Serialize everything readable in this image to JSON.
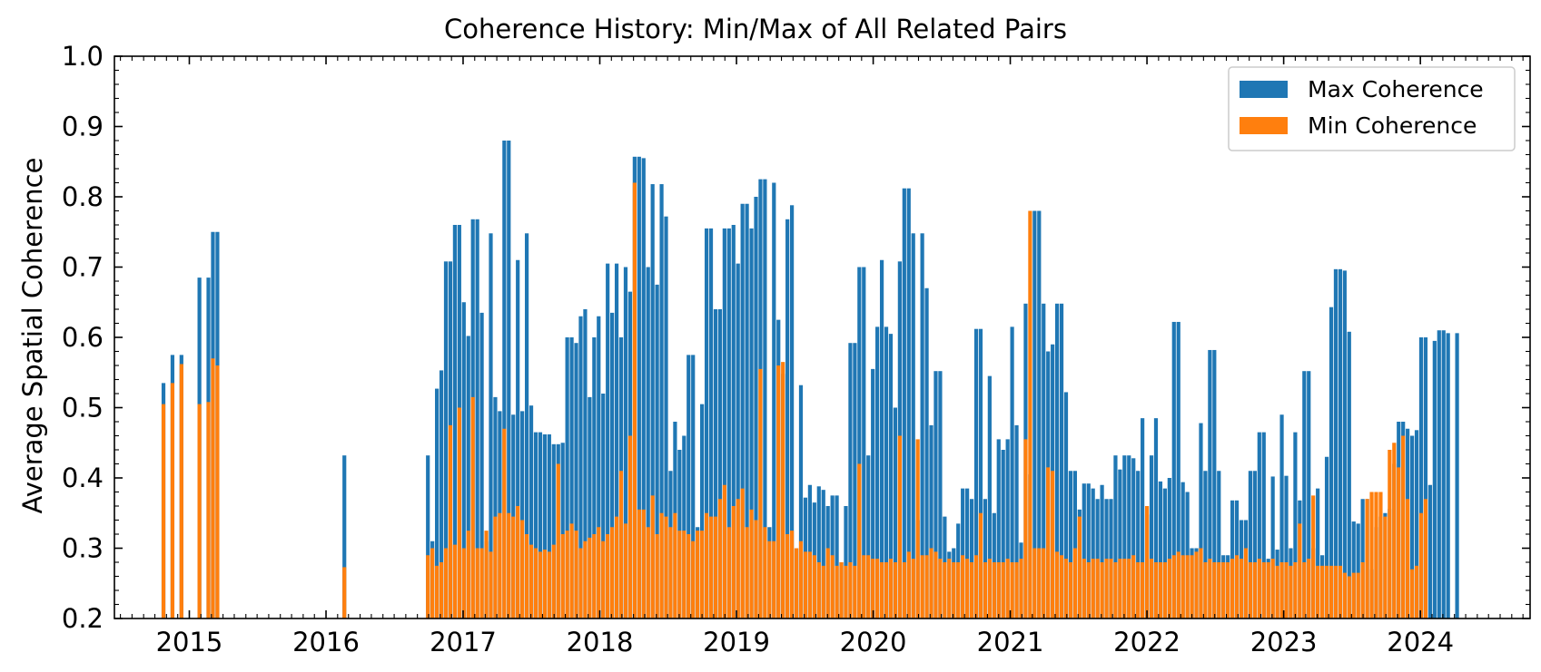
{
  "chart_data": {
    "type": "bar",
    "stacking": "overlay",
    "title": "Coherence History: Min/Max of All Related Pairs",
    "xlabel": "",
    "ylabel": "Average Spatial Coherence",
    "ylim": [
      0.2,
      1.0
    ],
    "xlim": [
      "2014-06-15",
      "2024-10-20"
    ],
    "yticks": [
      "0.2",
      "0.3",
      "0.4",
      "0.5",
      "0.6",
      "0.7",
      "0.8",
      "0.9",
      "1.0"
    ],
    "xticks": [
      "2015",
      "2016",
      "2017",
      "2018",
      "2019",
      "2020",
      "2021",
      "2022",
      "2023",
      "2024"
    ],
    "grid": false,
    "legend_position": "top-right",
    "colors": {
      "max": "#1f77b4",
      "min": "#ff7f0e"
    },
    "series": [
      {
        "name": "Max Coherence",
        "key": "max"
      },
      {
        "name": "Min Coherence",
        "key": "min"
      }
    ],
    "x": [
      "2014-10-24",
      "2014-11-17",
      "2014-12-11",
      "2015-01-28",
      "2015-02-21",
      "2015-03-05",
      "2015-03-17",
      "2016-02-19",
      "2016-09-29",
      "2016-10-11",
      "2016-10-23",
      "2016-11-04",
      "2016-11-16",
      "2016-11-28",
      "2016-12-10",
      "2016-12-22",
      "2017-01-03",
      "2017-01-15",
      "2017-01-27",
      "2017-02-08",
      "2017-02-20",
      "2017-03-04",
      "2017-03-16",
      "2017-03-28",
      "2017-04-09",
      "2017-04-21",
      "2017-05-03",
      "2017-05-15",
      "2017-05-27",
      "2017-06-08",
      "2017-06-20",
      "2017-07-02",
      "2017-07-14",
      "2017-07-26",
      "2017-08-07",
      "2017-08-19",
      "2017-08-31",
      "2017-09-12",
      "2017-09-24",
      "2017-10-06",
      "2017-10-18",
      "2017-10-30",
      "2017-11-11",
      "2017-11-23",
      "2017-12-05",
      "2017-12-17",
      "2017-12-29",
      "2018-01-10",
      "2018-01-22",
      "2018-02-03",
      "2018-02-15",
      "2018-02-27",
      "2018-03-11",
      "2018-03-23",
      "2018-04-04",
      "2018-04-16",
      "2018-04-28",
      "2018-05-10",
      "2018-05-22",
      "2018-06-03",
      "2018-06-15",
      "2018-06-27",
      "2018-07-09",
      "2018-07-21",
      "2018-08-02",
      "2018-08-14",
      "2018-08-26",
      "2018-09-07",
      "2018-09-19",
      "2018-10-01",
      "2018-10-13",
      "2018-10-25",
      "2018-11-06",
      "2018-11-18",
      "2018-11-30",
      "2018-12-12",
      "2018-12-24",
      "2019-01-05",
      "2019-01-17",
      "2019-01-29",
      "2019-02-10",
      "2019-02-22",
      "2019-03-06",
      "2019-03-18",
      "2019-03-30",
      "2019-04-11",
      "2019-04-23",
      "2019-05-05",
      "2019-05-17",
      "2019-05-29",
      "2019-06-10",
      "2019-06-22",
      "2019-07-04",
      "2019-07-16",
      "2019-07-28",
      "2019-08-09",
      "2019-08-21",
      "2019-09-02",
      "2019-09-14",
      "2019-09-26",
      "2019-10-08",
      "2019-10-20",
      "2019-11-01",
      "2019-11-13",
      "2019-11-25",
      "2019-12-07",
      "2019-12-19",
      "2019-12-31",
      "2020-01-12",
      "2020-01-24",
      "2020-02-05",
      "2020-02-17",
      "2020-02-29",
      "2020-03-12",
      "2020-03-24",
      "2020-04-05",
      "2020-04-17",
      "2020-04-29",
      "2020-05-11",
      "2020-05-23",
      "2020-06-04",
      "2020-06-16",
      "2020-06-28",
      "2020-07-10",
      "2020-07-22",
      "2020-08-03",
      "2020-08-15",
      "2020-08-27",
      "2020-09-08",
      "2020-09-20",
      "2020-10-02",
      "2020-10-14",
      "2020-10-26",
      "2020-11-07",
      "2020-11-19",
      "2020-12-01",
      "2020-12-13",
      "2020-12-25",
      "2021-01-06",
      "2021-01-18",
      "2021-01-30",
      "2021-02-11",
      "2021-02-23",
      "2021-03-07",
      "2021-03-19",
      "2021-03-31",
      "2021-04-12",
      "2021-04-24",
      "2021-05-06",
      "2021-05-18",
      "2021-05-30",
      "2021-06-11",
      "2021-06-23",
      "2021-07-05",
      "2021-07-17",
      "2021-07-29",
      "2021-08-10",
      "2021-08-22",
      "2021-09-03",
      "2021-09-15",
      "2021-09-27",
      "2021-10-09",
      "2021-10-21",
      "2021-11-02",
      "2021-11-14",
      "2021-11-26",
      "2021-12-08",
      "2021-12-20",
      "2022-01-01",
      "2022-01-13",
      "2022-01-25",
      "2022-02-06",
      "2022-02-18",
      "2022-03-02",
      "2022-03-14",
      "2022-03-26",
      "2022-04-07",
      "2022-04-19",
      "2022-05-01",
      "2022-05-13",
      "2022-05-25",
      "2022-06-06",
      "2022-06-18",
      "2022-06-30",
      "2022-07-12",
      "2022-07-24",
      "2022-08-05",
      "2022-08-17",
      "2022-08-29",
      "2022-09-10",
      "2022-09-22",
      "2022-10-04",
      "2022-10-16",
      "2022-10-28",
      "2022-11-09",
      "2022-11-21",
      "2022-12-03",
      "2022-12-15",
      "2022-12-27",
      "2023-01-08",
      "2023-01-20",
      "2023-02-01",
      "2023-02-13",
      "2023-02-25",
      "2023-03-09",
      "2023-03-21",
      "2023-04-02",
      "2023-04-14",
      "2023-04-26",
      "2023-05-08",
      "2023-05-20",
      "2023-06-01",
      "2023-06-13",
      "2023-06-25",
      "2023-07-07",
      "2023-07-19",
      "2023-07-31",
      "2023-08-12",
      "2023-08-24",
      "2023-09-05",
      "2023-09-17",
      "2023-09-29",
      "2023-10-11",
      "2023-10-23",
      "2023-11-04",
      "2023-11-16",
      "2023-11-28",
      "2023-12-10",
      "2023-12-22",
      "2024-01-03",
      "2024-01-15",
      "2024-01-27",
      "2024-02-08",
      "2024-02-20",
      "2024-03-03",
      "2024-03-15",
      "2024-04-08",
      "2024-04-20"
    ],
    "max": [
      0.535,
      0.575,
      0.575,
      0.685,
      0.685,
      0.75,
      0.75,
      0.432,
      0.432,
      0.31,
      0.527,
      0.553,
      0.708,
      0.708,
      0.76,
      0.76,
      0.65,
      0.602,
      0.768,
      0.768,
      0.635,
      0.31,
      0.748,
      0.515,
      0.495,
      0.88,
      0.88,
      0.49,
      0.71,
      0.495,
      0.748,
      0.503,
      0.465,
      0.465,
      0.462,
      0.462,
      0.448,
      0.448,
      0.45,
      0.6,
      0.6,
      0.592,
      0.63,
      0.64,
      0.515,
      0.6,
      0.63,
      0.52,
      0.705,
      0.635,
      0.705,
      0.6,
      0.7,
      0.665,
      0.857,
      0.857,
      0.855,
      0.7,
      0.818,
      0.675,
      0.818,
      0.772,
      0.41,
      0.48,
      0.44,
      0.46,
      0.575,
      0.575,
      0.33,
      0.505,
      0.755,
      0.755,
      0.64,
      0.64,
      0.755,
      0.755,
      0.76,
      0.705,
      0.79,
      0.79,
      0.755,
      0.8,
      0.825,
      0.825,
      0.33,
      0.82,
      0.625,
      0.548,
      0.768,
      0.788,
      0.3,
      0.532,
      0.372,
      0.39,
      0.365,
      0.388,
      0.383,
      0.36,
      0.375,
      0.375,
      0.28,
      0.36,
      0.592,
      0.592,
      0.7,
      0.7,
      0.432,
      0.555,
      0.615,
      0.71,
      0.615,
      0.605,
      0.5,
      0.708,
      0.812,
      0.812,
      0.748,
      0.34,
      0.748,
      0.67,
      0.475,
      0.552,
      0.552,
      0.345,
      0.295,
      0.3,
      0.335,
      0.385,
      0.385,
      0.37,
      0.612,
      0.612,
      0.37,
      0.545,
      0.35,
      0.455,
      0.44,
      0.455,
      0.615,
      0.475,
      0.308,
      0.648,
      0.405,
      0.78,
      0.78,
      0.648,
      0.58,
      0.59,
      0.648,
      0.648,
      0.522,
      0.41,
      0.41,
      0.355,
      0.392,
      0.392,
      0.385,
      0.37,
      0.39,
      0.37,
      0.37,
      0.432,
      0.412,
      0.432,
      0.432,
      0.428,
      0.41,
      0.485,
      0.348,
      0.432,
      0.485,
      0.395,
      0.385,
      0.4,
      0.622,
      0.622,
      0.394,
      0.38,
      0.3,
      0.3,
      0.478,
      0.41,
      0.582,
      0.582,
      0.41,
      0.29,
      0.29,
      0.368,
      0.368,
      0.34,
      0.34,
      0.41,
      0.41,
      0.465,
      0.465,
      0.285,
      0.402,
      0.298,
      0.49,
      0.403,
      0.3,
      0.465,
      0.368,
      0.552,
      0.552,
      0.3,
      0.385,
      0.29,
      0.43,
      0.643,
      0.697,
      0.697,
      0.695,
      0.608,
      0.338,
      0.335,
      0.37,
      0.37,
      0.27,
      0.33,
      0.345,
      0.35,
      0.356,
      0.42,
      0.48,
      0.48,
      0.47,
      0.46,
      0.468,
      0.6,
      0.6,
      0.39,
      0.595,
      0.61,
      0.61,
      0.606,
      0.606
    ],
    "min": [
      0.505,
      0.535,
      0.562,
      0.505,
      0.508,
      0.57,
      0.56,
      0.273,
      0.29,
      0.3,
      0.275,
      0.28,
      0.3,
      0.475,
      0.305,
      0.5,
      0.3,
      0.325,
      0.515,
      0.3,
      0.3,
      0.325,
      0.295,
      0.345,
      0.35,
      0.47,
      0.35,
      0.345,
      0.36,
      0.34,
      0.32,
      0.305,
      0.3,
      0.295,
      0.298,
      0.295,
      0.305,
      0.42,
      0.32,
      0.325,
      0.335,
      0.325,
      0.3,
      0.31,
      0.315,
      0.32,
      0.33,
      0.31,
      0.32,
      0.33,
      0.345,
      0.41,
      0.335,
      0.46,
      0.82,
      0.355,
      0.355,
      0.33,
      0.375,
      0.32,
      0.35,
      0.345,
      0.33,
      0.35,
      0.325,
      0.325,
      0.32,
      0.31,
      0.325,
      0.325,
      0.35,
      0.345,
      0.345,
      0.37,
      0.39,
      0.33,
      0.36,
      0.37,
      0.385,
      0.33,
      0.355,
      0.34,
      0.555,
      0.33,
      0.31,
      0.31,
      0.56,
      0.565,
      0.32,
      0.325,
      0.3,
      0.31,
      0.295,
      0.295,
      0.29,
      0.28,
      0.275,
      0.3,
      0.29,
      0.275,
      0.28,
      0.275,
      0.28,
      0.275,
      0.42,
      0.29,
      0.29,
      0.285,
      0.285,
      0.28,
      0.28,
      0.285,
      0.28,
      0.46,
      0.28,
      0.295,
      0.285,
      0.455,
      0.29,
      0.29,
      0.3,
      0.295,
      0.285,
      0.28,
      0.285,
      0.28,
      0.28,
      0.29,
      0.285,
      0.28,
      0.29,
      0.35,
      0.28,
      0.285,
      0.28,
      0.28,
      0.28,
      0.285,
      0.28,
      0.28,
      0.285,
      0.455,
      0.78,
      0.3,
      0.3,
      0.3,
      0.415,
      0.41,
      0.295,
      0.29,
      0.285,
      0.28,
      0.3,
      0.345,
      0.285,
      0.28,
      0.285,
      0.285,
      0.28,
      0.285,
      0.285,
      0.28,
      0.285,
      0.285,
      0.285,
      0.29,
      0.28,
      0.28,
      0.36,
      0.285,
      0.28,
      0.28,
      0.28,
      0.285,
      0.29,
      0.295,
      0.29,
      0.29,
      0.29,
      0.295,
      0.3,
      0.28,
      0.285,
      0.28,
      0.28,
      0.28,
      0.28,
      0.285,
      0.29,
      0.285,
      0.3,
      0.28,
      0.28,
      0.285,
      0.28,
      0.28,
      0.285,
      0.275,
      0.28,
      0.28,
      0.275,
      0.28,
      0.335,
      0.28,
      0.285,
      0.375,
      0.275,
      0.275,
      0.275,
      0.275,
      0.275,
      0.275,
      0.265,
      0.26,
      0.265,
      0.265,
      0.28,
      0.37,
      0.38,
      0.38,
      0.38,
      0.345,
      0.44,
      0.45,
      0.415,
      0.46,
      0.37,
      0.27,
      0.275,
      0.35,
      0.37
    ]
  }
}
